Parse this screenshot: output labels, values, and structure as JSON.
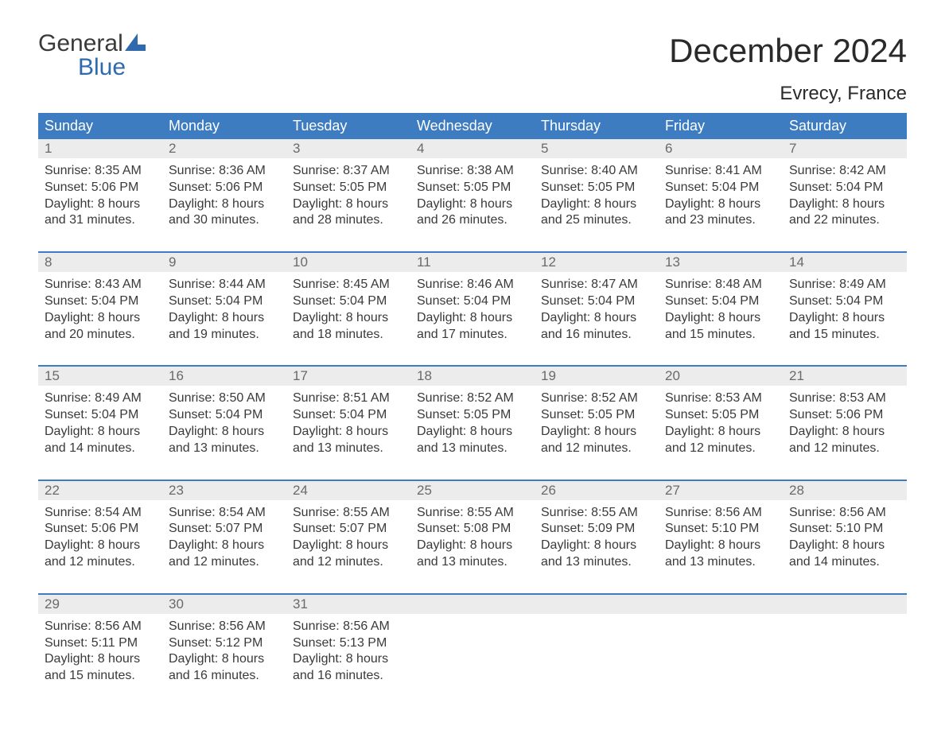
{
  "brand": {
    "text1": "General",
    "text2": "Blue"
  },
  "title": "December 2024",
  "location": "Evrecy, France",
  "colors": {
    "header_bg": "#3d7cc0",
    "header_text": "#ffffff",
    "daynum_bg": "#ececec",
    "daynum_text": "#6a6a6a",
    "body_text": "#3a3a3a",
    "week_divider": "#3d7cc0",
    "brand_blue": "#2f6aae"
  },
  "weekdays": [
    "Sunday",
    "Monday",
    "Tuesday",
    "Wednesday",
    "Thursday",
    "Friday",
    "Saturday"
  ],
  "labels": {
    "sunrise": "Sunrise:",
    "sunset": "Sunset:",
    "daylight": "Daylight:"
  },
  "weeks": [
    [
      {
        "n": "1",
        "sunrise": "8:35 AM",
        "sunset": "5:06 PM",
        "daylight": "8 hours and 31 minutes."
      },
      {
        "n": "2",
        "sunrise": "8:36 AM",
        "sunset": "5:06 PM",
        "daylight": "8 hours and 30 minutes."
      },
      {
        "n": "3",
        "sunrise": "8:37 AM",
        "sunset": "5:05 PM",
        "daylight": "8 hours and 28 minutes."
      },
      {
        "n": "4",
        "sunrise": "8:38 AM",
        "sunset": "5:05 PM",
        "daylight": "8 hours and 26 minutes."
      },
      {
        "n": "5",
        "sunrise": "8:40 AM",
        "sunset": "5:05 PM",
        "daylight": "8 hours and 25 minutes."
      },
      {
        "n": "6",
        "sunrise": "8:41 AM",
        "sunset": "5:04 PM",
        "daylight": "8 hours and 23 minutes."
      },
      {
        "n": "7",
        "sunrise": "8:42 AM",
        "sunset": "5:04 PM",
        "daylight": "8 hours and 22 minutes."
      }
    ],
    [
      {
        "n": "8",
        "sunrise": "8:43 AM",
        "sunset": "5:04 PM",
        "daylight": "8 hours and 20 minutes."
      },
      {
        "n": "9",
        "sunrise": "8:44 AM",
        "sunset": "5:04 PM",
        "daylight": "8 hours and 19 minutes."
      },
      {
        "n": "10",
        "sunrise": "8:45 AM",
        "sunset": "5:04 PM",
        "daylight": "8 hours and 18 minutes."
      },
      {
        "n": "11",
        "sunrise": "8:46 AM",
        "sunset": "5:04 PM",
        "daylight": "8 hours and 17 minutes."
      },
      {
        "n": "12",
        "sunrise": "8:47 AM",
        "sunset": "5:04 PM",
        "daylight": "8 hours and 16 minutes."
      },
      {
        "n": "13",
        "sunrise": "8:48 AM",
        "sunset": "5:04 PM",
        "daylight": "8 hours and 15 minutes."
      },
      {
        "n": "14",
        "sunrise": "8:49 AM",
        "sunset": "5:04 PM",
        "daylight": "8 hours and 15 minutes."
      }
    ],
    [
      {
        "n": "15",
        "sunrise": "8:49 AM",
        "sunset": "5:04 PM",
        "daylight": "8 hours and 14 minutes."
      },
      {
        "n": "16",
        "sunrise": "8:50 AM",
        "sunset": "5:04 PM",
        "daylight": "8 hours and 13 minutes."
      },
      {
        "n": "17",
        "sunrise": "8:51 AM",
        "sunset": "5:04 PM",
        "daylight": "8 hours and 13 minutes."
      },
      {
        "n": "18",
        "sunrise": "8:52 AM",
        "sunset": "5:05 PM",
        "daylight": "8 hours and 13 minutes."
      },
      {
        "n": "19",
        "sunrise": "8:52 AM",
        "sunset": "5:05 PM",
        "daylight": "8 hours and 12 minutes."
      },
      {
        "n": "20",
        "sunrise": "8:53 AM",
        "sunset": "5:05 PM",
        "daylight": "8 hours and 12 minutes."
      },
      {
        "n": "21",
        "sunrise": "8:53 AM",
        "sunset": "5:06 PM",
        "daylight": "8 hours and 12 minutes."
      }
    ],
    [
      {
        "n": "22",
        "sunrise": "8:54 AM",
        "sunset": "5:06 PM",
        "daylight": "8 hours and 12 minutes."
      },
      {
        "n": "23",
        "sunrise": "8:54 AM",
        "sunset": "5:07 PM",
        "daylight": "8 hours and 12 minutes."
      },
      {
        "n": "24",
        "sunrise": "8:55 AM",
        "sunset": "5:07 PM",
        "daylight": "8 hours and 12 minutes."
      },
      {
        "n": "25",
        "sunrise": "8:55 AM",
        "sunset": "5:08 PM",
        "daylight": "8 hours and 13 minutes."
      },
      {
        "n": "26",
        "sunrise": "8:55 AM",
        "sunset": "5:09 PM",
        "daylight": "8 hours and 13 minutes."
      },
      {
        "n": "27",
        "sunrise": "8:56 AM",
        "sunset": "5:10 PM",
        "daylight": "8 hours and 13 minutes."
      },
      {
        "n": "28",
        "sunrise": "8:56 AM",
        "sunset": "5:10 PM",
        "daylight": "8 hours and 14 minutes."
      }
    ],
    [
      {
        "n": "29",
        "sunrise": "8:56 AM",
        "sunset": "5:11 PM",
        "daylight": "8 hours and 15 minutes."
      },
      {
        "n": "30",
        "sunrise": "8:56 AM",
        "sunset": "5:12 PM",
        "daylight": "8 hours and 16 minutes."
      },
      {
        "n": "31",
        "sunrise": "8:56 AM",
        "sunset": "5:13 PM",
        "daylight": "8 hours and 16 minutes."
      },
      null,
      null,
      null,
      null
    ]
  ]
}
